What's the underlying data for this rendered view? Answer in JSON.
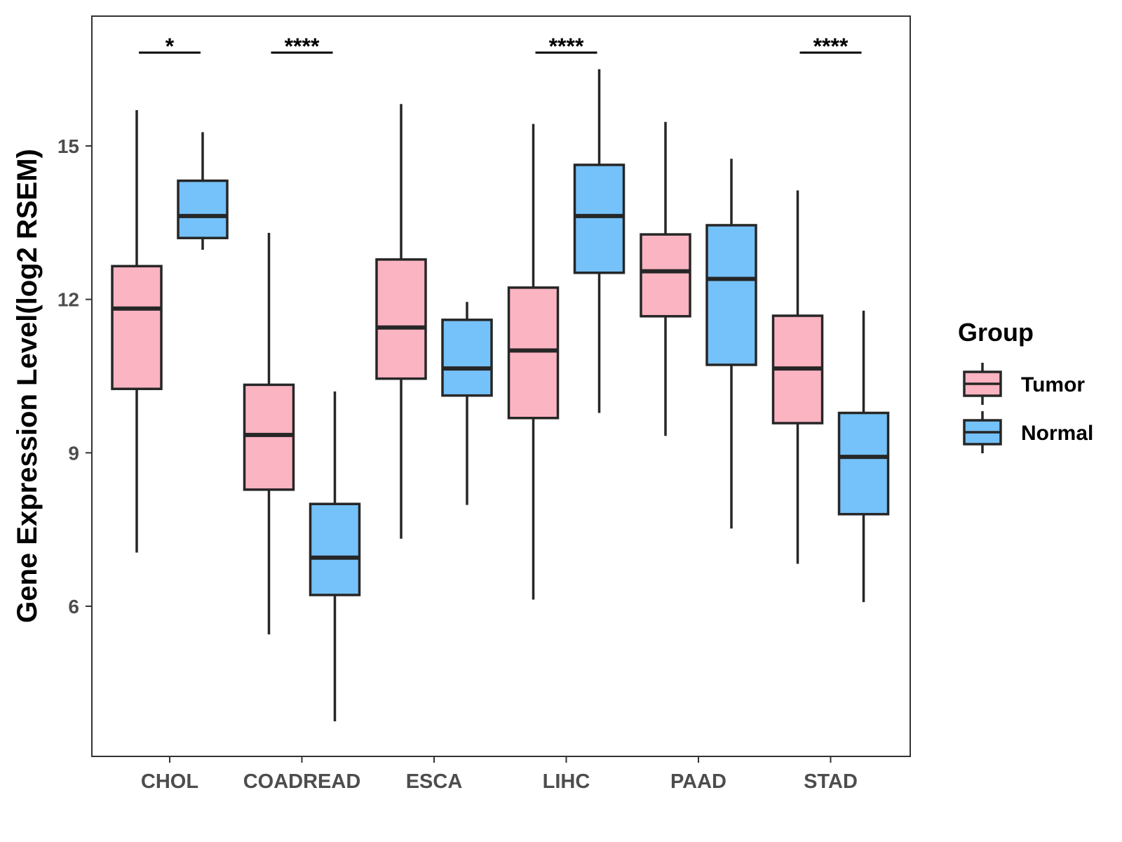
{
  "chart_data": {
    "type": "boxplot",
    "ylabel": "Gene Expression Level(log2 RSEM)",
    "xlabel": "",
    "ylim": [
      3.0,
      17.5
    ],
    "yticks": [
      6,
      9,
      12,
      15
    ],
    "categories": [
      "CHOL",
      "COADREAD",
      "ESCA",
      "LIHC",
      "PAAD",
      "STAD"
    ],
    "legend": {
      "title": "Group",
      "position": "right",
      "entries": [
        {
          "name": "Tumor",
          "color": "#FBB4C2"
        },
        {
          "name": "Normal",
          "color": "#75C1F9"
        }
      ]
    },
    "series": [
      {
        "name": "Tumor",
        "color": "#FBB4C2",
        "boxes": [
          {
            "min": 7.05,
            "q1": 10.25,
            "median": 11.82,
            "q3": 12.65,
            "max": 15.7
          },
          {
            "min": 5.45,
            "q1": 8.28,
            "median": 9.35,
            "q3": 10.33,
            "max": 13.3
          },
          {
            "min": 7.32,
            "q1": 10.45,
            "median": 11.45,
            "q3": 12.78,
            "max": 15.82
          },
          {
            "min": 6.13,
            "q1": 9.68,
            "median": 11.0,
            "q3": 12.23,
            "max": 15.43
          },
          {
            "min": 9.33,
            "q1": 11.67,
            "median": 12.55,
            "q3": 13.27,
            "max": 15.47
          },
          {
            "min": 6.83,
            "q1": 9.58,
            "median": 10.65,
            "q3": 11.68,
            "max": 14.13
          }
        ]
      },
      {
        "name": "Normal",
        "color": "#75C1F9",
        "boxes": [
          {
            "min": 12.97,
            "q1": 13.2,
            "median": 13.63,
            "q3": 14.32,
            "max": 15.27
          },
          {
            "min": 3.75,
            "q1": 6.22,
            "median": 6.95,
            "q3": 8.0,
            "max": 10.2
          },
          {
            "min": 7.98,
            "q1": 10.12,
            "median": 10.65,
            "q3": 11.6,
            "max": 11.95
          },
          {
            "min": 9.78,
            "q1": 12.52,
            "median": 13.63,
            "q3": 14.63,
            "max": 16.5
          },
          {
            "min": 7.52,
            "q1": 10.72,
            "median": 12.4,
            "q3": 13.45,
            "max": 14.75
          },
          {
            "min": 6.08,
            "q1": 7.8,
            "median": 8.92,
            "q3": 9.78,
            "max": 11.78
          }
        ]
      }
    ],
    "significance": [
      {
        "category": "CHOL",
        "label": "*"
      },
      {
        "category": "COADREAD",
        "label": "****"
      },
      {
        "category": "ESCA",
        "label": ""
      },
      {
        "category": "LIHC",
        "label": "****"
      },
      {
        "category": "PAAD",
        "label": ""
      },
      {
        "category": "STAD",
        "label": "****"
      }
    ],
    "grid": false
  }
}
